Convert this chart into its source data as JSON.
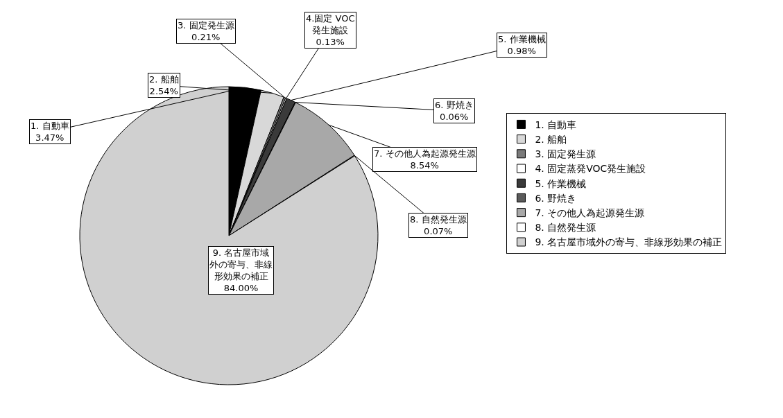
{
  "chart_data": {
    "type": "pie",
    "categories": [
      "1. 自動車",
      "2. 船舶",
      "3. 固定発生源",
      "4. 固定蒸発VOC発生施設",
      "5. 作業機械",
      "6. 野焼き",
      "7. その他人為起源発生源",
      "8. 自然発生源",
      "9. 名古屋市域外の寄与、非線形効果の補正"
    ],
    "values": [
      3.47,
      2.54,
      0.21,
      0.13,
      0.98,
      0.06,
      8.54,
      0.07,
      84.0
    ],
    "colors": [
      "#000000",
      "#d8d8d8",
      "#7a7a7a",
      "#ffffff",
      "#3a3a3a",
      "#5a5a5a",
      "#a8a8a8",
      "#ffffff",
      "#d0d0d0"
    ],
    "value_labels": [
      "1. 自動車\n3.47%",
      "2. 船舶\n2.54%",
      "3. 固定発生源\n0.21%",
      "4.固定 VOC\n発生施設\n0.13%",
      "5. 作業機械\n0.98%",
      "6. 野焼き\n0.06%",
      "7. その他人為起源発生源\n8.54%",
      "8. 自然発生源\n0.07%",
      "9. 名古屋市域外の寄与、非線形効果の補正\n84.00%"
    ],
    "legend": "right"
  }
}
